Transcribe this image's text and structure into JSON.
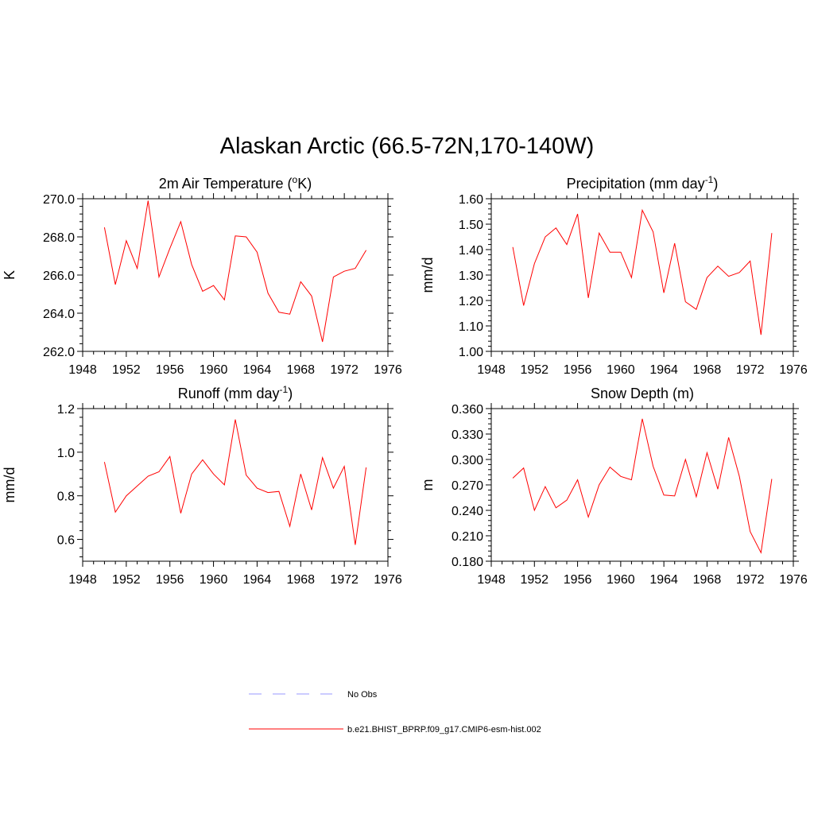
{
  "title": "Alaskan Arctic (66.5-72N,170-140W)",
  "legend": {
    "items": [
      {
        "label": "No Obs",
        "color": "#9999ff",
        "dash": true
      },
      {
        "label": "b.e21.BHIST_BPRP.f09_g17.CMIP6-esm-hist.002",
        "color": "#ff0000",
        "dash": false
      }
    ]
  },
  "chart_data": [
    {
      "type": "line",
      "title": "2m Air Temperature (",
      "title_sup": "o",
      "title_tail": "K)",
      "ylabel": "K",
      "ylim": [
        262.0,
        270.0
      ],
      "yticks": [
        262.0,
        264.0,
        266.0,
        268.0,
        270.0
      ],
      "ytick_labels": [
        "262.0",
        "264.0",
        "266.0",
        "268.0",
        "270.0"
      ],
      "xlim": [
        1948,
        1976
      ],
      "xticks": [
        1948,
        1952,
        1956,
        1960,
        1964,
        1968,
        1972,
        1976
      ],
      "series": [
        {
          "color": "#ff0000",
          "x": [
            1950,
            1951,
            1952,
            1953,
            1954,
            1955,
            1956,
            1957,
            1958,
            1959,
            1960,
            1961,
            1962,
            1963,
            1964,
            1965,
            1966,
            1967,
            1968,
            1969,
            1970,
            1971,
            1972,
            1973,
            1974
          ],
          "y": [
            268.5,
            265.5,
            267.8,
            266.35,
            269.9,
            265.9,
            267.4,
            268.8,
            266.55,
            265.15,
            265.45,
            264.7,
            268.05,
            268.0,
            267.2,
            265.05,
            264.05,
            263.95,
            265.65,
            264.9,
            262.5,
            265.9,
            266.2,
            266.35,
            267.3
          ]
        }
      ]
    },
    {
      "type": "line",
      "title": "Precipitation (mm day",
      "title_sup": "-1",
      "title_tail": ")",
      "ylabel": "mm/d",
      "ylim": [
        1.0,
        1.6
      ],
      "yticks": [
        1.0,
        1.1,
        1.2,
        1.3,
        1.4,
        1.5,
        1.6
      ],
      "ytick_labels": [
        "1.00",
        "1.10",
        "1.20",
        "1.30",
        "1.40",
        "1.50",
        "1.60"
      ],
      "xlim": [
        1948,
        1976
      ],
      "xticks": [
        1948,
        1952,
        1956,
        1960,
        1964,
        1968,
        1972,
        1976
      ],
      "series": [
        {
          "color": "#ff0000",
          "x": [
            1950,
            1951,
            1952,
            1953,
            1954,
            1955,
            1956,
            1957,
            1958,
            1959,
            1960,
            1961,
            1962,
            1963,
            1964,
            1965,
            1966,
            1967,
            1968,
            1969,
            1970,
            1971,
            1972,
            1973,
            1974
          ],
          "y": [
            1.41,
            1.18,
            1.345,
            1.45,
            1.485,
            1.42,
            1.54,
            1.21,
            1.465,
            1.39,
            1.39,
            1.29,
            1.555,
            1.47,
            1.23,
            1.425,
            1.195,
            1.165,
            1.29,
            1.335,
            1.295,
            1.31,
            1.355,
            1.065,
            1.465
          ]
        }
      ]
    },
    {
      "type": "line",
      "title": "Runoff (mm day",
      "title_sup": "-1",
      "title_tail": ")",
      "ylabel": "mm/d",
      "ylim": [
        0.5,
        1.2
      ],
      "yticks": [
        0.6,
        0.8,
        1.0,
        1.2
      ],
      "ytick_labels": [
        "0.6",
        "0.8",
        "1.0",
        "1.2"
      ],
      "xlim": [
        1948,
        1976
      ],
      "xticks": [
        1948,
        1952,
        1956,
        1960,
        1964,
        1968,
        1972,
        1976
      ],
      "series": [
        {
          "color": "#ff0000",
          "x": [
            1950,
            1951,
            1952,
            1953,
            1954,
            1955,
            1956,
            1957,
            1958,
            1959,
            1960,
            1961,
            1962,
            1963,
            1964,
            1965,
            1966,
            1967,
            1968,
            1969,
            1970,
            1971,
            1972,
            1973,
            1974
          ],
          "y": [
            0.955,
            0.725,
            0.8,
            0.845,
            0.89,
            0.91,
            0.98,
            0.72,
            0.9,
            0.965,
            0.9,
            0.85,
            1.15,
            0.895,
            0.835,
            0.815,
            0.82,
            0.66,
            0.9,
            0.735,
            0.975,
            0.835,
            0.935,
            0.575,
            0.93
          ]
        }
      ]
    },
    {
      "type": "line",
      "title": "Snow Depth (m)",
      "title_sup": "",
      "title_tail": "",
      "ylabel": "m",
      "ylim": [
        0.18,
        0.36
      ],
      "yticks": [
        0.18,
        0.21,
        0.24,
        0.27,
        0.3,
        0.33,
        0.36
      ],
      "ytick_labels": [
        "0.180",
        "0.210",
        "0.240",
        "0.270",
        "0.300",
        "0.330",
        "0.360"
      ],
      "xlim": [
        1948,
        1976
      ],
      "xticks": [
        1948,
        1952,
        1956,
        1960,
        1964,
        1968,
        1972,
        1976
      ],
      "series": [
        {
          "color": "#ff0000",
          "x": [
            1950,
            1951,
            1952,
            1953,
            1954,
            1955,
            1956,
            1957,
            1958,
            1959,
            1960,
            1961,
            1962,
            1963,
            1964,
            1965,
            1966,
            1967,
            1968,
            1969,
            1970,
            1971,
            1972,
            1973,
            1974
          ],
          "y": [
            0.278,
            0.29,
            0.24,
            0.268,
            0.243,
            0.252,
            0.276,
            0.232,
            0.27,
            0.291,
            0.28,
            0.276,
            0.348,
            0.292,
            0.258,
            0.257,
            0.3,
            0.256,
            0.308,
            0.265,
            0.326,
            0.28,
            0.215,
            0.19,
            0.277
          ]
        }
      ]
    }
  ]
}
